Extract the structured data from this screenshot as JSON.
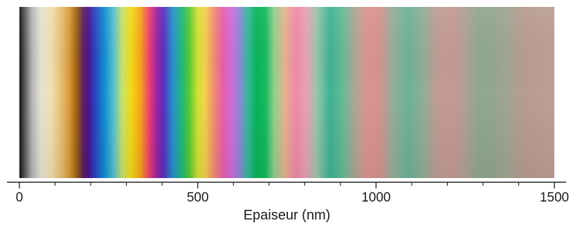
{
  "chart_data": {
    "type": "heatmap",
    "title": "",
    "xlabel": "Epaiseur (nm)",
    "ylabel": "",
    "xlim": [
      0,
      1500
    ],
    "grid": false,
    "legend": "none",
    "xticks": [
      {
        "value": 0,
        "label": "0"
      },
      {
        "value": 500,
        "label": "500"
      },
      {
        "value": 1000,
        "label": "1000"
      },
      {
        "value": 1500,
        "label": "1500"
      }
    ],
    "minor_tick_step": 100,
    "gradient_stops": [
      {
        "x": 0,
        "color": "#151515"
      },
      {
        "x": 15,
        "color": "#5a5a5a"
      },
      {
        "x": 35,
        "color": "#b4b4b4"
      },
      {
        "x": 60,
        "color": "#e6e3d6"
      },
      {
        "x": 90,
        "color": "#f0dfb0"
      },
      {
        "x": 115,
        "color": "#e8c27a"
      },
      {
        "x": 140,
        "color": "#d99a3c"
      },
      {
        "x": 160,
        "color": "#a0640c"
      },
      {
        "x": 180,
        "color": "#5e1e58"
      },
      {
        "x": 195,
        "color": "#4a1690"
      },
      {
        "x": 210,
        "color": "#2f3dbd"
      },
      {
        "x": 240,
        "color": "#1390d5"
      },
      {
        "x": 265,
        "color": "#58c3d3"
      },
      {
        "x": 290,
        "color": "#c7e46c"
      },
      {
        "x": 315,
        "color": "#f2d916"
      },
      {
        "x": 340,
        "color": "#f5a417"
      },
      {
        "x": 365,
        "color": "#ec3f6b"
      },
      {
        "x": 385,
        "color": "#a1229f"
      },
      {
        "x": 405,
        "color": "#5a2fbf"
      },
      {
        "x": 430,
        "color": "#2a8fd0"
      },
      {
        "x": 455,
        "color": "#1fb785"
      },
      {
        "x": 475,
        "color": "#4fc83a"
      },
      {
        "x": 500,
        "color": "#cfe335"
      },
      {
        "x": 520,
        "color": "#f4d24a"
      },
      {
        "x": 545,
        "color": "#f0906a"
      },
      {
        "x": 570,
        "color": "#e85fa6"
      },
      {
        "x": 595,
        "color": "#d46bd9"
      },
      {
        "x": 620,
        "color": "#8a88d6"
      },
      {
        "x": 640,
        "color": "#3ab79d"
      },
      {
        "x": 665,
        "color": "#08b25a"
      },
      {
        "x": 690,
        "color": "#15bb5e"
      },
      {
        "x": 715,
        "color": "#8fd38e"
      },
      {
        "x": 745,
        "color": "#e6b38f"
      },
      {
        "x": 775,
        "color": "#f08aa6"
      },
      {
        "x": 805,
        "color": "#e9a0b8"
      },
      {
        "x": 835,
        "color": "#99c5a8"
      },
      {
        "x": 870,
        "color": "#3fb196"
      },
      {
        "x": 905,
        "color": "#61bb96"
      },
      {
        "x": 940,
        "color": "#a9a996"
      },
      {
        "x": 975,
        "color": "#dc9590"
      },
      {
        "x": 1010,
        "color": "#d6938f"
      },
      {
        "x": 1050,
        "color": "#93ae99"
      },
      {
        "x": 1090,
        "color": "#6cb396"
      },
      {
        "x": 1130,
        "color": "#8eae96"
      },
      {
        "x": 1170,
        "color": "#be9d95"
      },
      {
        "x": 1210,
        "color": "#c89993"
      },
      {
        "x": 1250,
        "color": "#b19f96"
      },
      {
        "x": 1290,
        "color": "#8fa890"
      },
      {
        "x": 1330,
        "color": "#94a690"
      },
      {
        "x": 1370,
        "color": "#a3a592"
      },
      {
        "x": 1420,
        "color": "#b99c91"
      },
      {
        "x": 1500,
        "color": "#bda096"
      }
    ]
  }
}
